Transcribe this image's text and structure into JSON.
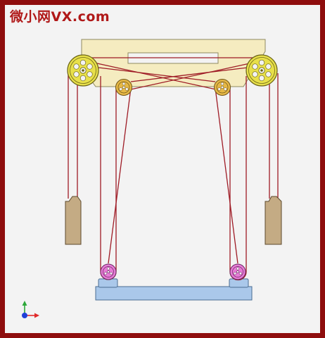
{
  "watermark": {
    "cn": "微小网",
    "en": "VX.com"
  },
  "colors": {
    "frame_border": "#8e0d0d",
    "background": "#f3f3f3",
    "header_plate": "#f5ecc0",
    "big_pulley": "#e8e04a",
    "small_pulley": "#e6b845",
    "bottom_pulley": "#e77bd6",
    "counterweight": "#c4ab84",
    "base_plate": "#aac8ea",
    "rope": "#9e1b25"
  },
  "icons": {
    "axis_triad": "xyz-axis-triad-icon"
  }
}
